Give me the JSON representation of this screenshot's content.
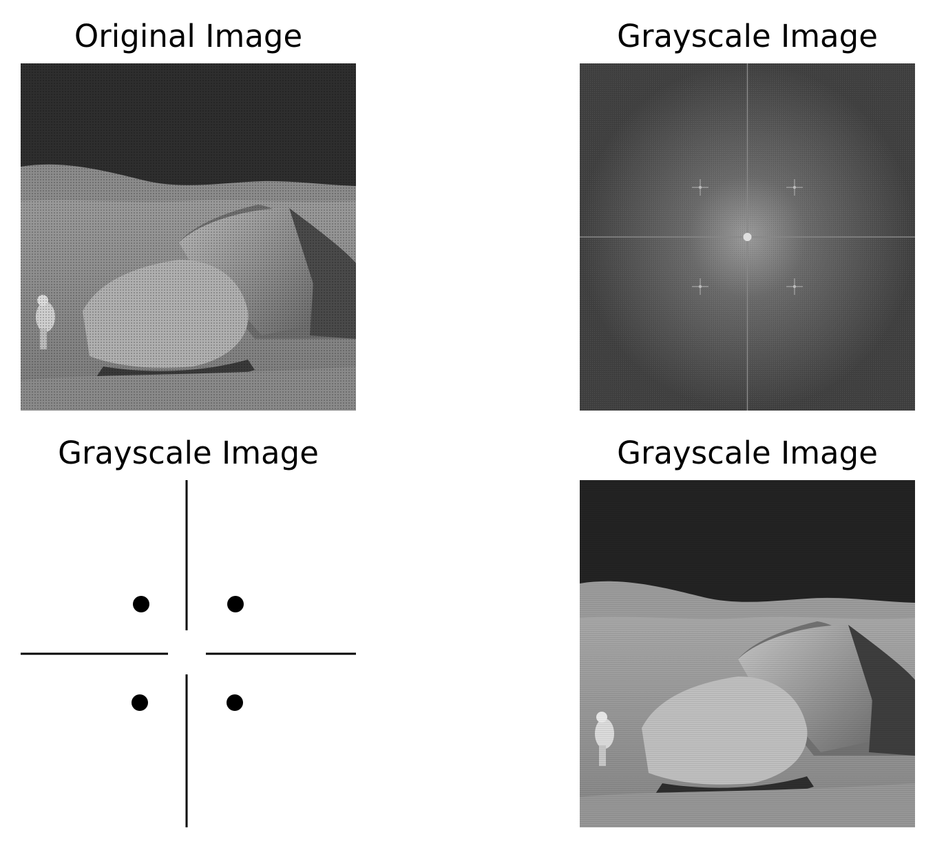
{
  "figure": {
    "panels": [
      {
        "title": "Original Image",
        "content": "moon surface photo with halftone periodic noise"
      },
      {
        "title": "Grayscale Image",
        "content": "FFT magnitude spectrum with four noise peaks"
      },
      {
        "title": "Grayscale Image",
        "content": "notch filter mask with four black dots and cross lines"
      },
      {
        "title": "Grayscale Image",
        "content": "filtered moon surface photo"
      }
    ]
  },
  "colors": {
    "background": "#ffffff",
    "text": "#000000",
    "sky": "#262626",
    "terrain": "#8f8f8f",
    "rock": "#a8a8a8",
    "spectrum": "#4a4a4a"
  }
}
